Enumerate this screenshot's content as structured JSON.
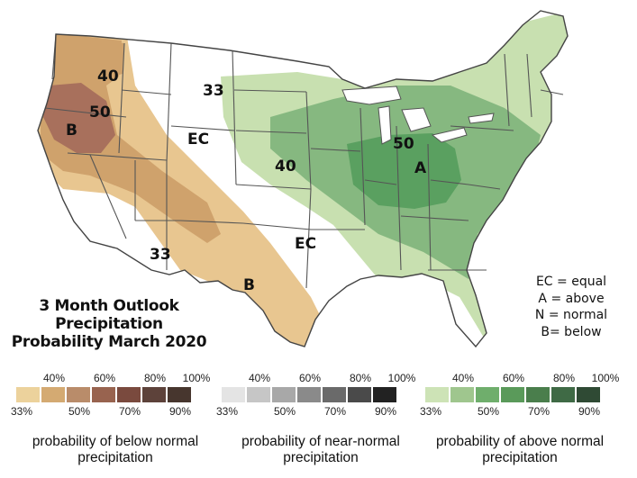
{
  "map": {
    "region_labels": [
      "40",
      "50",
      "B",
      "33",
      "EC",
      "40",
      "EC",
      "33",
      "B",
      "50",
      "A"
    ],
    "colors": {
      "land": "#ffffff",
      "border": "#555555",
      "below_33": "#e8c690",
      "below_40": "#cfa26c",
      "below_50": "#a8705c",
      "above_33": "#c8e0b0",
      "above_40": "#86b880",
      "above_50": "#5aa060"
    }
  },
  "title": {
    "line1": "3 Month Outlook",
    "line2": "Precipitation",
    "line3": "Probability March 2020"
  },
  "key": {
    "line1": "EC = equal",
    "line2": "A = above",
    "line3": "N = normal",
    "line4": "B= below"
  },
  "legends": [
    {
      "top_labels": [
        "40%",
        "60%",
        "80%",
        "100%"
      ],
      "bottom_labels": [
        "33%",
        "50%",
        "70%",
        "90%"
      ],
      "colors": [
        "#ecd29c",
        "#d4aa72",
        "#b98c6a",
        "#98634f",
        "#7a4a3e",
        "#5d423a",
        "#47362e"
      ],
      "caption_line1": "probability of below normal",
      "caption_line2": "precipitation"
    },
    {
      "top_labels": [
        "40%",
        "60%",
        "80%",
        "100%"
      ],
      "bottom_labels": [
        "33%",
        "50%",
        "70%",
        "90%"
      ],
      "colors": [
        "#e4e4e4",
        "#c6c6c6",
        "#a8a8a8",
        "#8a8a8a",
        "#6a6a6a",
        "#4a4a4a",
        "#222222"
      ],
      "caption_line1": "probability of near-normal",
      "caption_line2": "precipitation"
    },
    {
      "top_labels": [
        "40%",
        "60%",
        "80%",
        "100%"
      ],
      "bottom_labels": [
        "33%",
        "50%",
        "70%",
        "90%"
      ],
      "colors": [
        "#cde3b6",
        "#9fc68e",
        "#6fae6c",
        "#5a9a5a",
        "#4a7e4c",
        "#3f6a45",
        "#2f4a34"
      ],
      "caption_line1": "probability of above normal",
      "caption_line2": "precipitation"
    }
  ]
}
